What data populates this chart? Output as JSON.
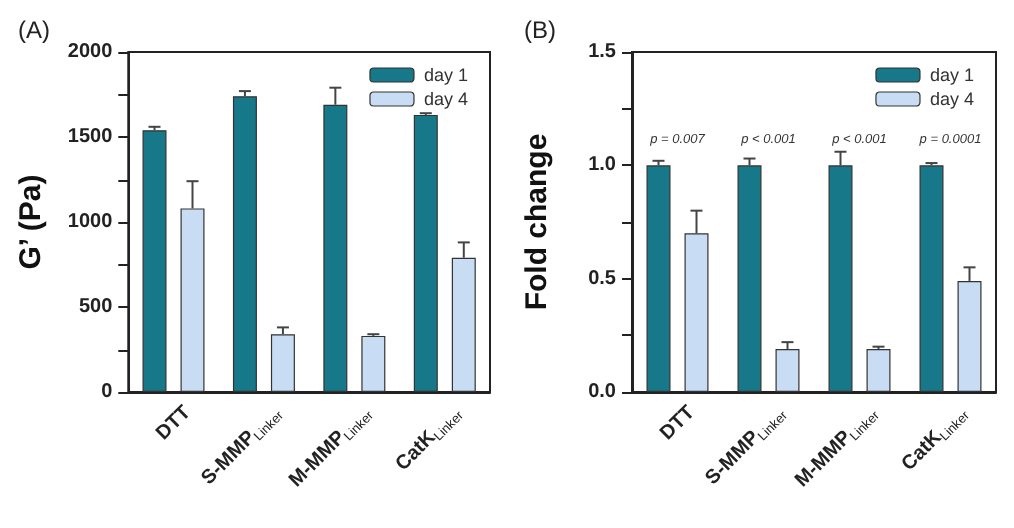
{
  "chart_data": [
    {
      "type": "bar",
      "title": "(A)",
      "ylabel": "G’ (Pa)",
      "categories": [
        "DTT",
        "S-MMP$_{Linker}$",
        "M-MMP$_{Linker}$",
        "CatK$_{Linker}$"
      ],
      "series": [
        {
          "name": "day 1",
          "color": "#17788a",
          "values": [
            1540,
            1740,
            1690,
            1630
          ],
          "errors": [
            [
              1540,
              1560
            ],
            [
              1740,
              1770
            ],
            [
              1690,
              1790
            ],
            [
              1630,
              1640
            ]
          ]
        },
        {
          "name": "day 4",
          "color": "#c8ddf4",
          "values": [
            1080,
            340,
            330,
            790
          ],
          "errors": [
            [
              1080,
              1240
            ],
            [
              340,
              380
            ],
            [
              330,
              340
            ],
            [
              790,
              880
            ]
          ]
        }
      ],
      "ylim": [
        0,
        2000
      ],
      "yticks": [
        0,
        {
          "value": 250,
          "label": null
        },
        500,
        {
          "value": 750,
          "label": null
        },
        1000,
        {
          "value": 1250,
          "label": null
        },
        1500,
        {
          "value": 1750,
          "label": null
        },
        2000
      ],
      "grid": false,
      "legend": "top right"
    },
    {
      "type": "bar",
      "title": "(B)",
      "ylabel": "Fold change",
      "categories": [
        "DTT",
        "S-MMP$_{Linker}$",
        "M-MMP$_{Linker}$",
        "CatK$_{Linker}$"
      ],
      "series": [
        {
          "name": "day 1",
          "color": "#17788a",
          "values": [
            1.0,
            1.0,
            1.0,
            1.0
          ],
          "errors": [
            [
              1.0,
              1.02
            ],
            [
              1.0,
              1.03
            ],
            [
              1.0,
              1.06
            ],
            [
              1.0,
              1.01
            ]
          ]
        },
        {
          "name": "day 4",
          "color": "#c8ddf4",
          "values": [
            0.7,
            0.19,
            0.19,
            0.49
          ],
          "errors": [
            [
              0.7,
              0.8
            ],
            [
              0.19,
              0.22
            ],
            [
              0.19,
              0.2
            ],
            [
              0.49,
              0.55
            ]
          ]
        }
      ],
      "ylim": [
        0,
        1.5
      ],
      "yticks": [
        {
          "value": 0,
          "label": "0.0"
        },
        {
          "value": 0.25,
          "label": null
        },
        {
          "value": 0.5,
          "label": "0.5"
        },
        {
          "value": 0.75,
          "label": null
        },
        {
          "value": 1,
          "label": "1.0"
        },
        {
          "value": 1.25,
          "label": null
        },
        {
          "value": 1.5,
          "label": "1.5"
        }
      ],
      "annotations": [
        "p = 0.007",
        "p < 0.001",
        "p < 0.001",
        "p = 0.0001"
      ],
      "grid": false,
      "legend": "top right"
    }
  ]
}
